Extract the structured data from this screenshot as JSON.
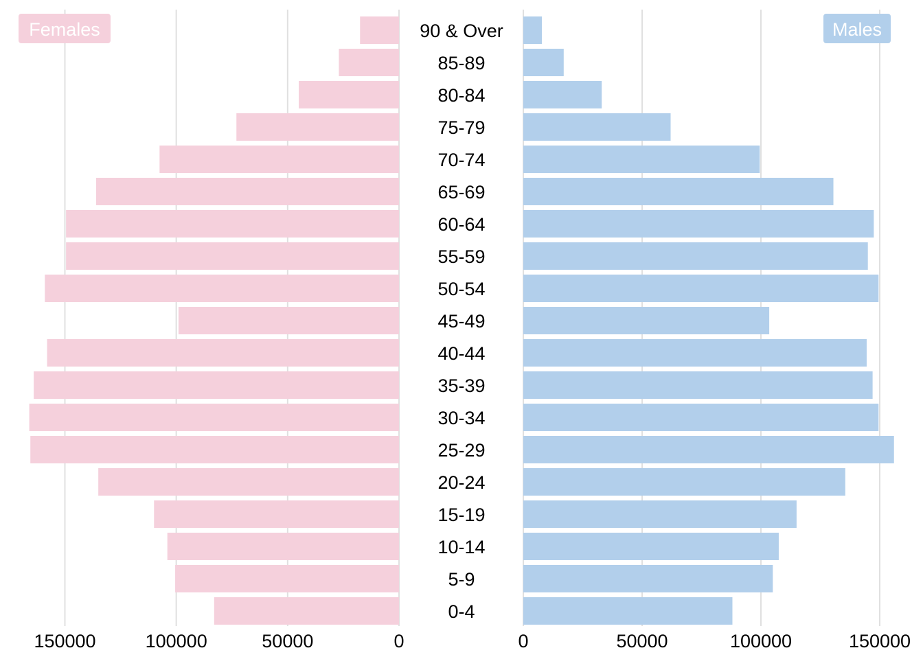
{
  "chart_data": {
    "type": "bar",
    "orientation": "horizontal-population-pyramid",
    "categories": [
      "0-4",
      "5-9",
      "10-14",
      "15-19",
      "20-24",
      "25-29",
      "30-34",
      "35-39",
      "40-44",
      "45-49",
      "50-54",
      "55-59",
      "60-64",
      "65-69",
      "70-74",
      "75-79",
      "80-84",
      "85-89",
      "90 & Over"
    ],
    "series": [
      {
        "name": "Females",
        "color": "#f5d0dc",
        "side": "left",
        "values": [
          83000,
          100500,
          104000,
          110000,
          135000,
          165500,
          166000,
          164000,
          158000,
          99000,
          159000,
          149500,
          149500,
          136000,
          107500,
          73000,
          45000,
          27000,
          17500
        ]
      },
      {
        "name": "Males",
        "color": "#b2cfeb",
        "side": "right",
        "values": [
          88000,
          105000,
          107500,
          115000,
          135500,
          156000,
          149500,
          147000,
          144500,
          103500,
          149500,
          145000,
          147500,
          130500,
          99500,
          62000,
          33000,
          17000,
          7800
        ]
      }
    ],
    "female_ticks": [
      "150000",
      "100000",
      "50000",
      "0"
    ],
    "male_ticks": [
      "0",
      "50000",
      "100000",
      "150000"
    ],
    "female_xlim": [
      0,
      172000
    ],
    "male_xlim": [
      0,
      165000
    ],
    "grid": true,
    "legend": {
      "left": "Females",
      "right": "Males"
    }
  }
}
